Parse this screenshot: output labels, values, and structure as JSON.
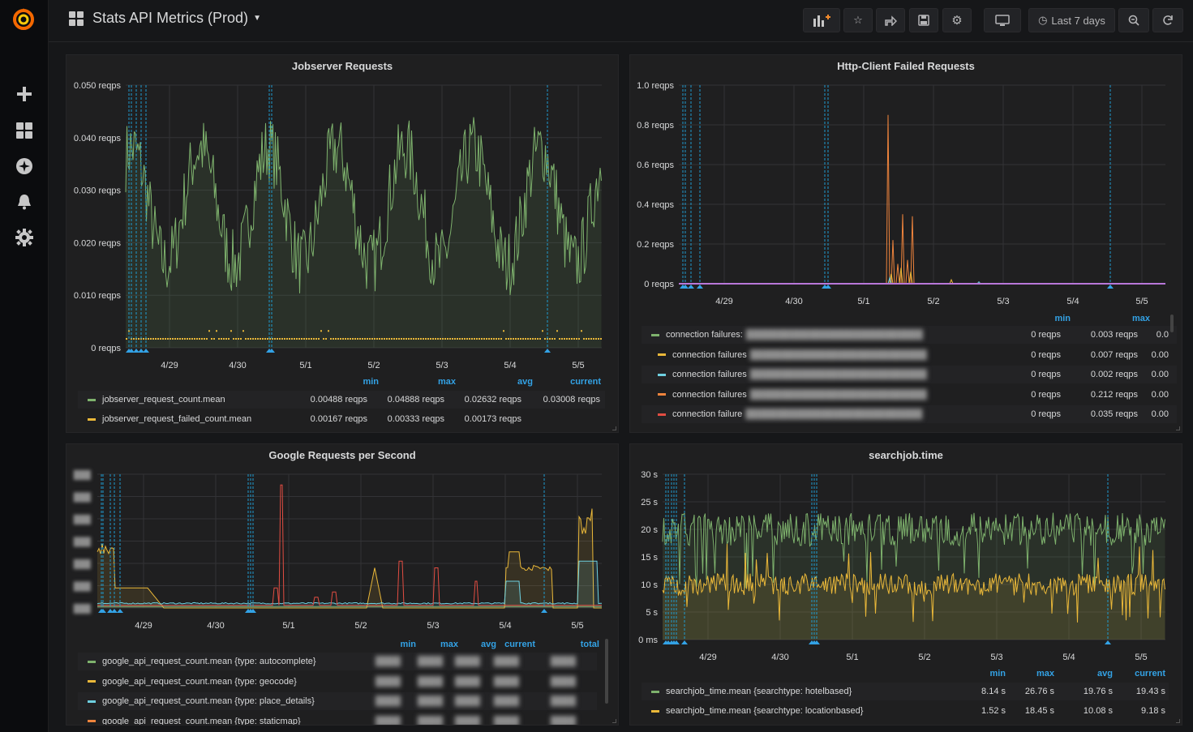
{
  "dashboard": {
    "title": "Stats API Metrics (Prod)",
    "time_range": "Last 7 days"
  },
  "navbar": {
    "buttons": [
      "add-panel-icon",
      "star-icon",
      "share-icon",
      "save-icon",
      "settings-icon",
      "tv-icon",
      "time-picker",
      "zoom-out-icon",
      "refresh-icon"
    ]
  },
  "sidebar": {
    "items": [
      "plus-icon",
      "dashboards-icon",
      "explore-icon",
      "bell-icon",
      "gear-icon"
    ]
  },
  "colors": {
    "green": "#7eb26d",
    "yellow": "#eab839",
    "blue": "#6ed0e0",
    "orange": "#ef843c",
    "red": "#e24d42",
    "accent": "#33a2e5",
    "annotation": "#1f9bcf"
  },
  "x_ticks": [
    "4/29",
    "4/30",
    "5/1",
    "5/2",
    "5/3",
    "5/4",
    "5/5"
  ],
  "panels": {
    "jobserver": {
      "title": "Jobserver Requests",
      "yticks": [
        "0.050 reqps",
        "0.040 reqps",
        "0.030 reqps",
        "0.020 reqps",
        "0.010 reqps",
        "0 reqps"
      ],
      "legend_headers": [
        "min",
        "max",
        "avg",
        "current"
      ],
      "legend": [
        {
          "name": "jobserver_request_count.mean",
          "min": "0.00488 reqps",
          "max": "0.04888 reqps",
          "avg": "0.02632 reqps",
          "current": "0.03008 reqps"
        },
        {
          "name": "jobserver_request_failed_count.mean",
          "min": "0.00167 reqps",
          "max": "0.00333 reqps",
          "avg": "0.00173 reqps",
          "current": ""
        }
      ]
    },
    "httpclient": {
      "title": "Http-Client Failed Requests",
      "yticks": [
        "1.0 reqps",
        "0.8 reqps",
        "0.6 reqps",
        "0.4 reqps",
        "0.2 reqps",
        "0 reqps"
      ],
      "legend_headers": [
        "min",
        "max"
      ],
      "legend": [
        {
          "name": "connection failures:",
          "min": "0 reqps",
          "max": "0.003 reqps",
          "avg": "0.0"
        },
        {
          "name": "connection failures",
          "min": "0 reqps",
          "max": "0.007 reqps",
          "avg": "0.00"
        },
        {
          "name": "connection failures",
          "min": "0 reqps",
          "max": "0.002 reqps",
          "avg": "0.00"
        },
        {
          "name": "connection failures",
          "min": "0 reqps",
          "max": "0.212 reqps",
          "avg": "0.00"
        },
        {
          "name": "connection failure",
          "min": "0 reqps",
          "max": "0.035 reqps",
          "avg": "0.00"
        }
      ]
    },
    "google": {
      "title": "Google Requests per Second",
      "yticks": [
        "",
        "",
        "",
        "",
        "",
        "",
        ""
      ],
      "legend_headers": [
        "min",
        "max",
        "avg",
        "current",
        "total"
      ],
      "legend": [
        {
          "name": "google_api_request_count.mean {type: autocomplete}"
        },
        {
          "name": "google_api_request_count.mean {type: geocode}"
        },
        {
          "name": "google_api_request_count.mean {type: place_details}"
        },
        {
          "name": "google_api_request_count.mean {type: staticmap}"
        }
      ]
    },
    "searchjob": {
      "title": "searchjob.time",
      "yticks": [
        "30 s",
        "25 s",
        "20 s",
        "15 s",
        "10 s",
        "5 s",
        "0 ms"
      ],
      "legend_headers": [
        "min",
        "max",
        "avg",
        "current"
      ],
      "legend": [
        {
          "name": "searchjob_time.mean {searchtype: hotelbased}",
          "min": "8.14 s",
          "max": "26.76 s",
          "avg": "19.76 s",
          "current": "19.43 s"
        },
        {
          "name": "searchjob_time.mean {searchtype: locationbased}",
          "min": "1.52 s",
          "max": "18.45 s",
          "avg": "10.08 s",
          "current": "9.18 s"
        }
      ]
    }
  }
}
